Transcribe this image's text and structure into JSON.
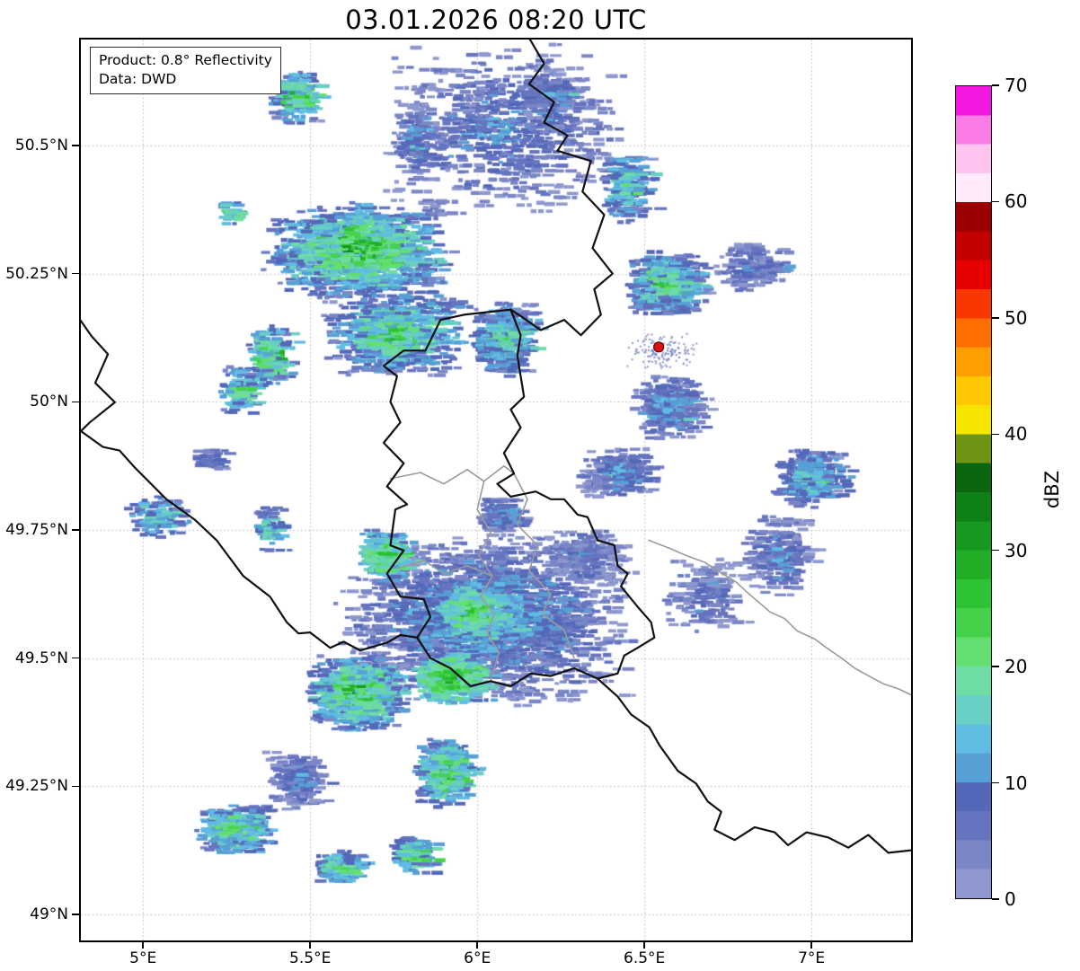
{
  "title": "03.01.2026 08:20 UTC",
  "product_box": {
    "line1": "Product: 0.8° Reflectivity",
    "line2": "Data: DWD"
  },
  "map": {
    "lon_min": 4.814,
    "lon_max": 7.298,
    "lat_min": 48.949,
    "lat_max": 50.707,
    "grid_color": "#b4b4b4",
    "x_ticks": [
      {
        "value": 5.0,
        "label": "5°E"
      },
      {
        "value": 5.5,
        "label": "5.5°E"
      },
      {
        "value": 6.0,
        "label": "6°E"
      },
      {
        "value": 6.5,
        "label": "6.5°E"
      },
      {
        "value": 7.0,
        "label": "7°E"
      }
    ],
    "y_ticks": [
      {
        "value": 49.0,
        "label": "49°N"
      },
      {
        "value": 49.25,
        "label": "49.25°N"
      },
      {
        "value": 49.5,
        "label": "49.5°N"
      },
      {
        "value": 49.75,
        "label": "49.75°N"
      },
      {
        "value": 50.0,
        "label": "50°N"
      },
      {
        "value": 50.25,
        "label": "50.25°N"
      },
      {
        "value": 50.5,
        "label": "50.5°N"
      }
    ],
    "radar_site": {
      "lon": 6.543,
      "lat": 50.107,
      "color": "#e01010"
    },
    "border_colors": {
      "national": "#111111",
      "regional": "#9a9a9a"
    },
    "borders": {
      "national": [
        [
          [
            6.158,
            50.707
          ],
          [
            6.2,
            50.66
          ],
          [
            6.155,
            50.62
          ],
          [
            6.23,
            50.585
          ],
          [
            6.2,
            50.545
          ],
          [
            6.27,
            50.52
          ],
          [
            6.24,
            50.49
          ],
          [
            6.34,
            50.47
          ],
          [
            6.315,
            50.41
          ],
          [
            6.38,
            50.365
          ],
          [
            6.345,
            50.3
          ],
          [
            6.405,
            50.25
          ],
          [
            6.35,
            50.22
          ],
          [
            6.37,
            50.17
          ],
          [
            6.31,
            50.13
          ],
          [
            6.26,
            50.16
          ],
          [
            6.19,
            50.14
          ],
          [
            6.135,
            50.165
          ],
          [
            6.1,
            50.18
          ]
        ],
        [
          [
            6.1,
            50.18
          ],
          [
            6.13,
            50.13
          ],
          [
            6.12,
            50.09
          ],
          [
            6.14,
            50.01
          ],
          [
            6.1,
            49.985
          ],
          [
            6.13,
            49.95
          ],
          [
            6.08,
            49.9
          ],
          [
            6.11,
            49.86
          ],
          [
            6.06,
            49.84
          ],
          [
            6.1,
            49.815
          ],
          [
            6.175,
            49.825
          ],
          [
            6.22,
            49.81
          ],
          [
            6.26,
            49.81
          ],
          [
            6.3,
            49.78
          ],
          [
            6.33,
            49.775
          ],
          [
            6.36,
            49.73
          ],
          [
            6.41,
            49.72
          ],
          [
            6.42,
            49.68
          ],
          [
            6.45,
            49.665
          ],
          [
            6.43,
            49.64
          ],
          [
            6.48,
            49.6
          ],
          [
            6.52,
            49.57
          ],
          [
            6.53,
            49.54
          ],
          [
            6.48,
            49.52
          ],
          [
            6.44,
            49.505
          ],
          [
            6.42,
            49.47
          ],
          [
            6.36,
            49.46
          ],
          [
            6.29,
            49.48
          ],
          [
            6.22,
            49.465
          ],
          [
            6.16,
            49.47
          ],
          [
            6.1,
            49.445
          ],
          [
            6.04,
            49.455
          ],
          [
            5.98,
            49.445
          ],
          [
            5.92,
            49.48
          ],
          [
            5.86,
            49.5
          ],
          [
            5.82,
            49.54
          ],
          [
            5.86,
            49.58
          ],
          [
            5.84,
            49.615
          ],
          [
            5.77,
            49.62
          ],
          [
            5.73,
            49.665
          ],
          [
            5.78,
            49.71
          ],
          [
            5.74,
            49.72
          ],
          [
            5.755,
            49.79
          ],
          [
            5.79,
            49.8
          ],
          [
            5.73,
            49.835
          ],
          [
            5.78,
            49.88
          ],
          [
            5.72,
            49.92
          ],
          [
            5.77,
            49.96
          ],
          [
            5.74,
            50.0
          ],
          [
            5.76,
            50.05
          ],
          [
            5.72,
            50.07
          ],
          [
            5.78,
            50.1
          ],
          [
            5.845,
            50.1
          ],
          [
            5.89,
            50.16
          ],
          [
            5.96,
            50.17
          ],
          [
            6.03,
            50.175
          ],
          [
            6.1,
            50.18
          ]
        ],
        [
          [
            6.36,
            49.46
          ],
          [
            6.42,
            49.425
          ],
          [
            6.46,
            49.39
          ],
          [
            6.515,
            49.365
          ],
          [
            6.545,
            49.33
          ],
          [
            6.6,
            49.28
          ],
          [
            6.655,
            49.255
          ],
          [
            6.69,
            49.22
          ],
          [
            6.73,
            49.2
          ],
          [
            6.71,
            49.165
          ],
          [
            6.77,
            49.145
          ],
          [
            6.83,
            49.17
          ],
          [
            6.89,
            49.16
          ],
          [
            6.93,
            49.135
          ],
          [
            6.985,
            49.16
          ],
          [
            7.05,
            49.15
          ],
          [
            7.11,
            49.13
          ],
          [
            7.17,
            49.155
          ],
          [
            7.23,
            49.12
          ],
          [
            7.298,
            49.125
          ]
        ],
        [
          [
            4.814,
            50.158
          ],
          [
            4.846,
            50.128
          ],
          [
            4.895,
            50.093
          ],
          [
            4.857,
            50.037
          ],
          [
            4.916,
            49.999
          ],
          [
            4.841,
            49.96
          ],
          [
            4.814,
            49.943
          ],
          [
            4.88,
            49.912
          ],
          [
            4.93,
            49.905
          ],
          [
            4.975,
            49.872
          ],
          [
            5.07,
            49.81
          ],
          [
            5.155,
            49.77
          ],
          [
            5.22,
            49.73
          ],
          [
            5.3,
            49.66
          ],
          [
            5.38,
            49.62
          ],
          [
            5.43,
            49.57
          ],
          [
            5.465,
            49.548
          ],
          [
            5.5,
            49.55
          ],
          [
            5.56,
            49.52
          ],
          [
            5.6,
            49.532
          ],
          [
            5.65,
            49.515
          ],
          [
            5.73,
            49.53
          ],
          [
            5.77,
            49.545
          ],
          [
            5.82,
            49.54
          ]
        ]
      ],
      "regional": [
        [
          [
            5.74,
            49.85
          ],
          [
            5.83,
            49.862
          ],
          [
            5.9,
            49.84
          ],
          [
            5.97,
            49.868
          ],
          [
            6.02,
            49.845
          ],
          [
            6.08,
            49.875
          ],
          [
            6.11,
            49.86
          ]
        ],
        [
          [
            6.02,
            49.845
          ],
          [
            6.0,
            49.79
          ],
          [
            6.04,
            49.745
          ],
          [
            6.005,
            49.7
          ],
          [
            6.045,
            49.66
          ],
          [
            6.01,
            49.62
          ],
          [
            6.05,
            49.585
          ],
          [
            6.03,
            49.55
          ],
          [
            6.065,
            49.51
          ],
          [
            6.04,
            49.455
          ]
        ],
        [
          [
            5.76,
            49.675
          ],
          [
            5.84,
            49.69
          ],
          [
            5.9,
            49.665
          ],
          [
            5.97,
            49.68
          ],
          [
            6.045,
            49.66
          ]
        ],
        [
          [
            6.11,
            49.86
          ],
          [
            6.15,
            49.81
          ],
          [
            6.12,
            49.76
          ],
          [
            6.18,
            49.72
          ],
          [
            6.155,
            49.67
          ],
          [
            6.22,
            49.625
          ],
          [
            6.195,
            49.585
          ],
          [
            6.26,
            49.555
          ],
          [
            6.29,
            49.5
          ]
        ],
        [
          [
            6.513,
            49.73
          ],
          [
            6.58,
            49.713
          ],
          [
            6.625,
            49.7
          ],
          [
            6.68,
            49.687
          ],
          [
            6.728,
            49.667
          ],
          [
            6.775,
            49.648
          ],
          [
            6.81,
            49.627
          ],
          [
            6.876,
            49.59
          ],
          [
            6.92,
            49.577
          ],
          [
            6.957,
            49.553
          ],
          [
            7.01,
            49.537
          ],
          [
            7.045,
            49.52
          ],
          [
            7.09,
            49.5
          ],
          [
            7.13,
            49.48
          ],
          [
            7.18,
            49.462
          ],
          [
            7.215,
            49.45
          ],
          [
            7.26,
            49.44
          ],
          [
            7.298,
            49.428
          ]
        ]
      ]
    }
  },
  "colorbar": {
    "label": "dBZ",
    "min": 0,
    "max": 70,
    "ticks": [
      0,
      10,
      20,
      30,
      40,
      50,
      60,
      70
    ],
    "segment_step": 2.5,
    "colors": [
      "#8e98ce",
      "#7a86c6",
      "#6674bf",
      "#5468b9",
      "#57a0d6",
      "#60bce2",
      "#67cfc3",
      "#6fdca3",
      "#62df6e",
      "#45d24b",
      "#2dc334",
      "#20ae27",
      "#16991e",
      "#0f8016",
      "#0a660f",
      "#6f9413",
      "#f5e400",
      "#ffc800",
      "#ff9e00",
      "#ff6e00",
      "#f93800",
      "#e60000",
      "#c20000",
      "#9b0000",
      "#feeafa",
      "#fec4f0",
      "#fc7ce6",
      "#f318e0"
    ]
  },
  "chart_data": {
    "type": "heatmap",
    "title": "03.01.2026 08:20 UTC",
    "units": "dBZ",
    "value_range": [
      0,
      70
    ],
    "x_range_deg_e": [
      4.814,
      7.298
    ],
    "y_range_deg_n": [
      48.949,
      50.707
    ],
    "legend_position": "right",
    "grid": true,
    "seed": 1337,
    "radar_site": {
      "lon": 6.543,
      "lat": 50.107
    },
    "echo_regions": [
      {
        "name": "nw-cell-top",
        "lon": 5.44,
        "lat": 50.595,
        "rlon": 0.07,
        "rlat": 0.055,
        "n": 140,
        "min_dbz": 4,
        "max_dbz": 32
      },
      {
        "name": "nw-tiny",
        "lon": 5.24,
        "lat": 50.37,
        "rlon": 0.02,
        "rlat": 0.025,
        "n": 18,
        "min_dbz": 8,
        "max_dbz": 26
      },
      {
        "name": "nw-main",
        "lon": 5.62,
        "lat": 50.295,
        "rlon": 0.28,
        "rlat": 0.095,
        "n": 950,
        "min_dbz": 2,
        "max_dbz": 36
      },
      {
        "name": "nw-main-south",
        "lon": 5.74,
        "lat": 50.135,
        "rlon": 0.22,
        "rlat": 0.085,
        "n": 500,
        "min_dbz": 2,
        "max_dbz": 30
      },
      {
        "name": "west-cell",
        "lon": 5.355,
        "lat": 50.09,
        "rlon": 0.05,
        "rlat": 0.065,
        "n": 130,
        "min_dbz": 4,
        "max_dbz": 33
      },
      {
        "name": "west-cell-2",
        "lon": 5.27,
        "lat": 50.02,
        "rlon": 0.05,
        "rlat": 0.05,
        "n": 100,
        "min_dbz": 4,
        "max_dbz": 28
      },
      {
        "name": "north-scatter",
        "lon": 6.05,
        "lat": 50.53,
        "rlon": 0.36,
        "rlat": 0.17,
        "n": 480,
        "min_dbz": 0,
        "max_dbz": 13
      },
      {
        "name": "north-cell",
        "lon": 6.42,
        "lat": 50.42,
        "rlon": 0.065,
        "rlat": 0.075,
        "n": 150,
        "min_dbz": 2,
        "max_dbz": 24
      },
      {
        "name": "north-cell-2",
        "lon": 6.2,
        "lat": 50.6,
        "rlon": 0.08,
        "rlat": 0.06,
        "n": 90,
        "min_dbz": 0,
        "max_dbz": 14
      },
      {
        "name": "north-west-streaks",
        "lon": 5.8,
        "lat": 50.5,
        "rlon": 0.06,
        "rlat": 0.09,
        "n": 100,
        "min_dbz": 0,
        "max_dbz": 16
      },
      {
        "name": "center-north",
        "lon": 6.06,
        "lat": 50.12,
        "rlon": 0.09,
        "rlat": 0.075,
        "n": 280,
        "min_dbz": 2,
        "max_dbz": 26
      },
      {
        "name": "ne-cluster",
        "lon": 6.545,
        "lat": 50.23,
        "rlon": 0.12,
        "rlat": 0.065,
        "n": 400,
        "min_dbz": 2,
        "max_dbz": 28
      },
      {
        "name": "ne-scatter",
        "lon": 6.8,
        "lat": 50.26,
        "rlon": 0.13,
        "rlat": 0.05,
        "n": 130,
        "min_dbz": 0,
        "max_dbz": 12
      },
      {
        "name": "east-mid",
        "lon": 6.55,
        "lat": 49.99,
        "rlon": 0.1,
        "rlat": 0.065,
        "n": 210,
        "min_dbz": 0,
        "max_dbz": 20
      },
      {
        "name": "east-cells",
        "lon": 6.975,
        "lat": 49.85,
        "rlon": 0.1,
        "rlat": 0.06,
        "n": 210,
        "min_dbz": 2,
        "max_dbz": 22
      },
      {
        "name": "east-low-scatter",
        "lon": 6.88,
        "lat": 49.7,
        "rlon": 0.11,
        "rlat": 0.085,
        "n": 150,
        "min_dbz": 0,
        "max_dbz": 13
      },
      {
        "name": "mid-cells",
        "lon": 6.4,
        "lat": 49.86,
        "rlon": 0.11,
        "rlat": 0.05,
        "n": 170,
        "min_dbz": 0,
        "max_dbz": 16
      },
      {
        "name": "center-small",
        "lon": 6.05,
        "lat": 49.78,
        "rlon": 0.06,
        "rlat": 0.04,
        "n": 100,
        "min_dbz": 2,
        "max_dbz": 16
      },
      {
        "name": "west-specks",
        "lon": 5.03,
        "lat": 49.775,
        "rlon": 0.09,
        "rlat": 0.045,
        "n": 80,
        "min_dbz": 4,
        "max_dbz": 22
      },
      {
        "name": "west-small-cell",
        "lon": 5.36,
        "lat": 49.75,
        "rlon": 0.03,
        "rlat": 0.05,
        "n": 55,
        "min_dbz": 4,
        "max_dbz": 20
      },
      {
        "name": "west-tiny",
        "lon": 5.18,
        "lat": 49.885,
        "rlon": 0.04,
        "rlat": 0.025,
        "n": 35,
        "min_dbz": 2,
        "max_dbz": 14
      },
      {
        "name": "south-main",
        "lon": 6.0,
        "lat": 49.575,
        "rlon": 0.44,
        "rlat": 0.17,
        "n": 1500,
        "min_dbz": 0,
        "max_dbz": 18
      },
      {
        "name": "south-core-nw",
        "lon": 5.7,
        "lat": 49.7,
        "rlon": 0.075,
        "rlat": 0.05,
        "n": 220,
        "min_dbz": 8,
        "max_dbz": 30
      },
      {
        "name": "south-core-mid",
        "lon": 5.97,
        "lat": 49.59,
        "rlon": 0.11,
        "rlat": 0.05,
        "n": 300,
        "min_dbz": 8,
        "max_dbz": 32
      },
      {
        "name": "south-core-s",
        "lon": 5.9,
        "lat": 49.46,
        "rlon": 0.1,
        "rlat": 0.05,
        "n": 320,
        "min_dbz": 10,
        "max_dbz": 34
      },
      {
        "name": "sw-cluster",
        "lon": 5.62,
        "lat": 49.43,
        "rlon": 0.14,
        "rlat": 0.075,
        "n": 520,
        "min_dbz": 4,
        "max_dbz": 34
      },
      {
        "name": "south-cells",
        "lon": 5.88,
        "lat": 49.275,
        "rlon": 0.08,
        "rlat": 0.07,
        "n": 280,
        "min_dbz": 4,
        "max_dbz": 32
      },
      {
        "name": "sw-small-cluster",
        "lon": 5.25,
        "lat": 49.165,
        "rlon": 0.1,
        "rlat": 0.05,
        "n": 280,
        "min_dbz": 4,
        "max_dbz": 30
      },
      {
        "name": "south-small",
        "lon": 5.57,
        "lat": 49.09,
        "rlon": 0.07,
        "rlat": 0.035,
        "n": 120,
        "min_dbz": 4,
        "max_dbz": 26
      },
      {
        "name": "south-small-2",
        "lon": 5.78,
        "lat": 49.115,
        "rlon": 0.05,
        "rlat": 0.04,
        "n": 120,
        "min_dbz": 4,
        "max_dbz": 28
      },
      {
        "name": "sw-streaks",
        "lon": 5.44,
        "lat": 49.26,
        "rlon": 0.085,
        "rlat": 0.06,
        "n": 130,
        "min_dbz": 0,
        "max_dbz": 13
      },
      {
        "name": "mid-right-sparse",
        "lon": 6.66,
        "lat": 49.62,
        "rlon": 0.12,
        "rlat": 0.08,
        "n": 120,
        "min_dbz": 0,
        "max_dbz": 11
      },
      {
        "name": "se-of-lux-sparse",
        "lon": 6.3,
        "lat": 49.7,
        "rlon": 0.12,
        "rlat": 0.06,
        "n": 150,
        "min_dbz": 0,
        "max_dbz": 12
      },
      {
        "name": "radar-near-speckle",
        "lon": 6.55,
        "lat": 50.1,
        "rlon": 0.11,
        "rlat": 0.04,
        "n": 140,
        "min_dbz": 0,
        "max_dbz": 5,
        "speckle": true
      }
    ]
  }
}
